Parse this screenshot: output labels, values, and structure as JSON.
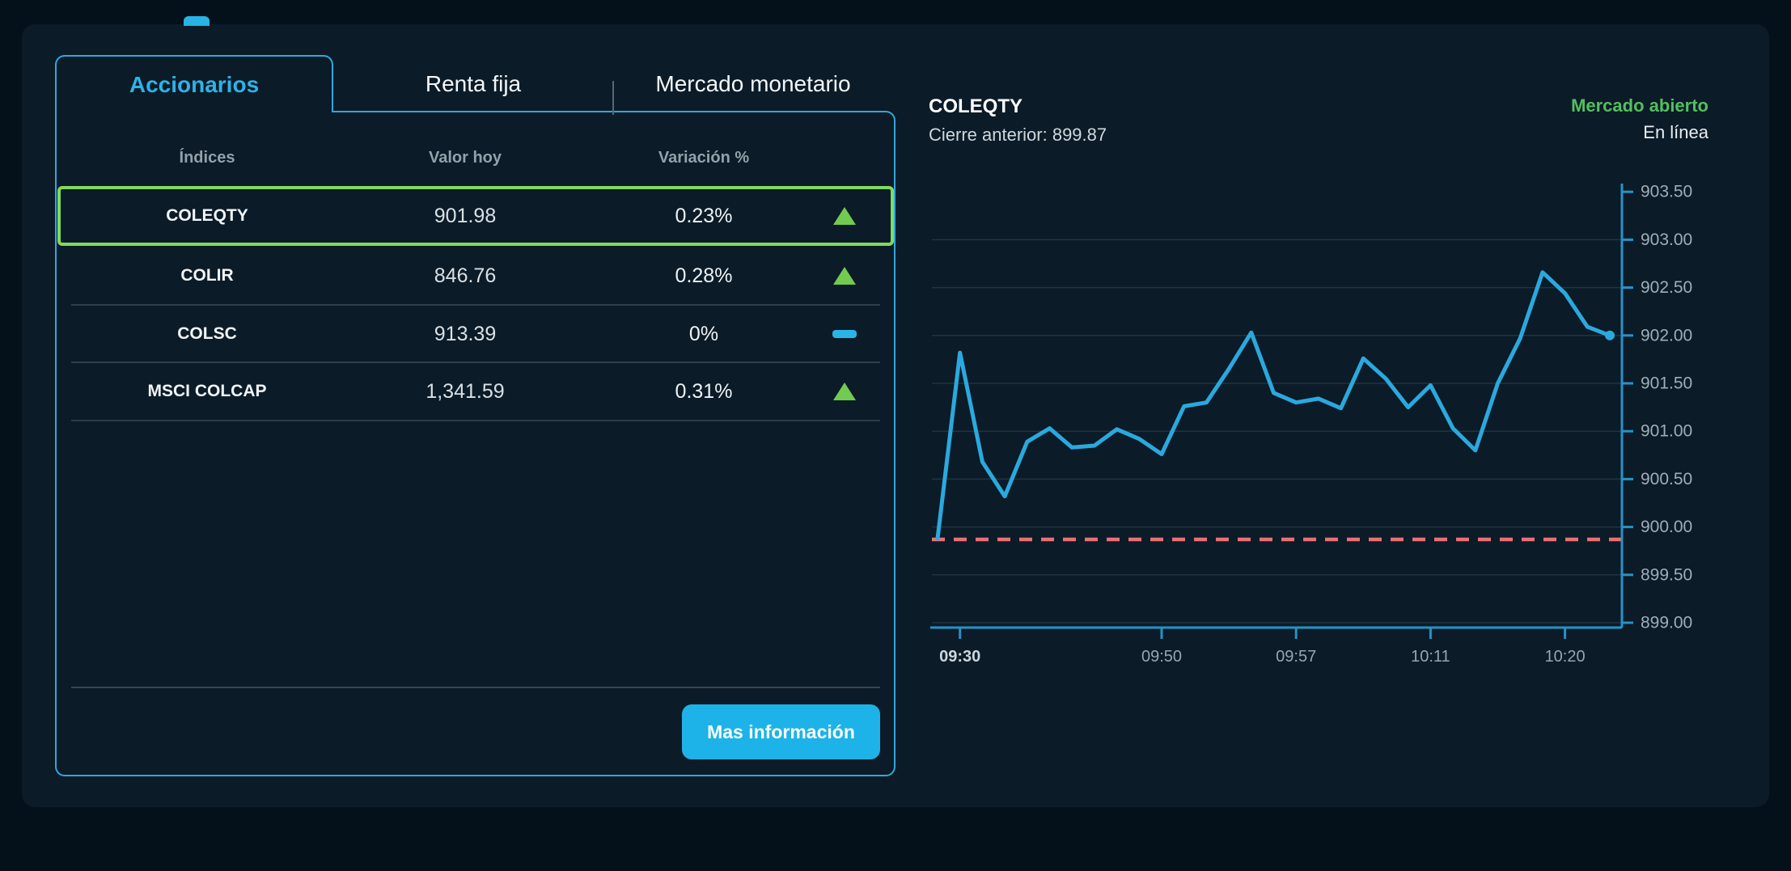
{
  "colors": {
    "page_bg": "#04101a",
    "card_bg": "#0b1b28",
    "accent_cyan": "#29b2e4",
    "panel_border": "#2fa9dc",
    "highlight_green": "#82d95e",
    "triangle_green": "#72ca4f",
    "status_green": "#53bf5e",
    "button_bg": "#1db3e8",
    "prev_close_red": "#ec6f74"
  },
  "tabs": {
    "items": [
      {
        "label": "Accionarios",
        "active": true
      },
      {
        "label": "Renta fija",
        "active": false
      },
      {
        "label": "Mercado monetario",
        "active": false
      }
    ]
  },
  "table": {
    "headers": [
      "Índices",
      "Valor hoy",
      "Variación %"
    ],
    "rows": [
      {
        "name": "COLEQTY",
        "value": "901.98",
        "change": "0.23%",
        "direction": "up",
        "highlighted": true
      },
      {
        "name": "COLIR",
        "value": "846.76",
        "change": "0.28%",
        "direction": "up",
        "highlighted": false
      },
      {
        "name": "COLSC",
        "value": "913.39",
        "change": "0%",
        "direction": "flat",
        "highlighted": false
      },
      {
        "name": "MSCI COLCAP",
        "value": "1,341.59",
        "change": "0.31%",
        "direction": "up",
        "highlighted": false
      }
    ]
  },
  "button": {
    "label": "Mas información"
  },
  "chart_header": {
    "title": "COLEQTY",
    "previous_close_text": "Cierre anterior: 899.87",
    "market_status": "Mercado abierto",
    "online_status": "En línea"
  },
  "chart_data": {
    "type": "line",
    "title": "COLEQTY",
    "previous_close": 899.87,
    "ylim": [
      899.0,
      903.5
    ],
    "y_step": 0.5,
    "grid": true,
    "legend": false,
    "values": [
      899.88,
      901.82,
      900.68,
      900.32,
      900.89,
      901.03,
      900.83,
      900.85,
      901.02,
      900.92,
      900.76,
      901.26,
      901.3,
      901.65,
      902.03,
      901.4,
      901.3,
      901.34,
      901.24,
      901.76,
      901.55,
      901.25,
      901.48,
      901.03,
      900.8,
      901.5,
      901.97,
      902.66,
      902.44,
      902.09,
      902.0
    ],
    "x_ticks": [
      {
        "label": "09:30",
        "index": 1,
        "emphasis": true
      },
      {
        "label": "09:50",
        "index": 10,
        "emphasis": false
      },
      {
        "label": "09:57",
        "index": 16,
        "emphasis": false
      },
      {
        "label": "10:11",
        "index": 22,
        "emphasis": false
      },
      {
        "label": "10:20",
        "index": 28,
        "emphasis": false
      }
    ],
    "colors": {
      "line": "#2aa9de",
      "axis": "#2593c7",
      "grid": "rgba(154,180,197,0.16)",
      "y_label": "#9fadb6",
      "x_label": "#97a5ae",
      "x_label_emphasis": "#ccd6dc",
      "previous_close_line": "#ec6f74"
    }
  }
}
